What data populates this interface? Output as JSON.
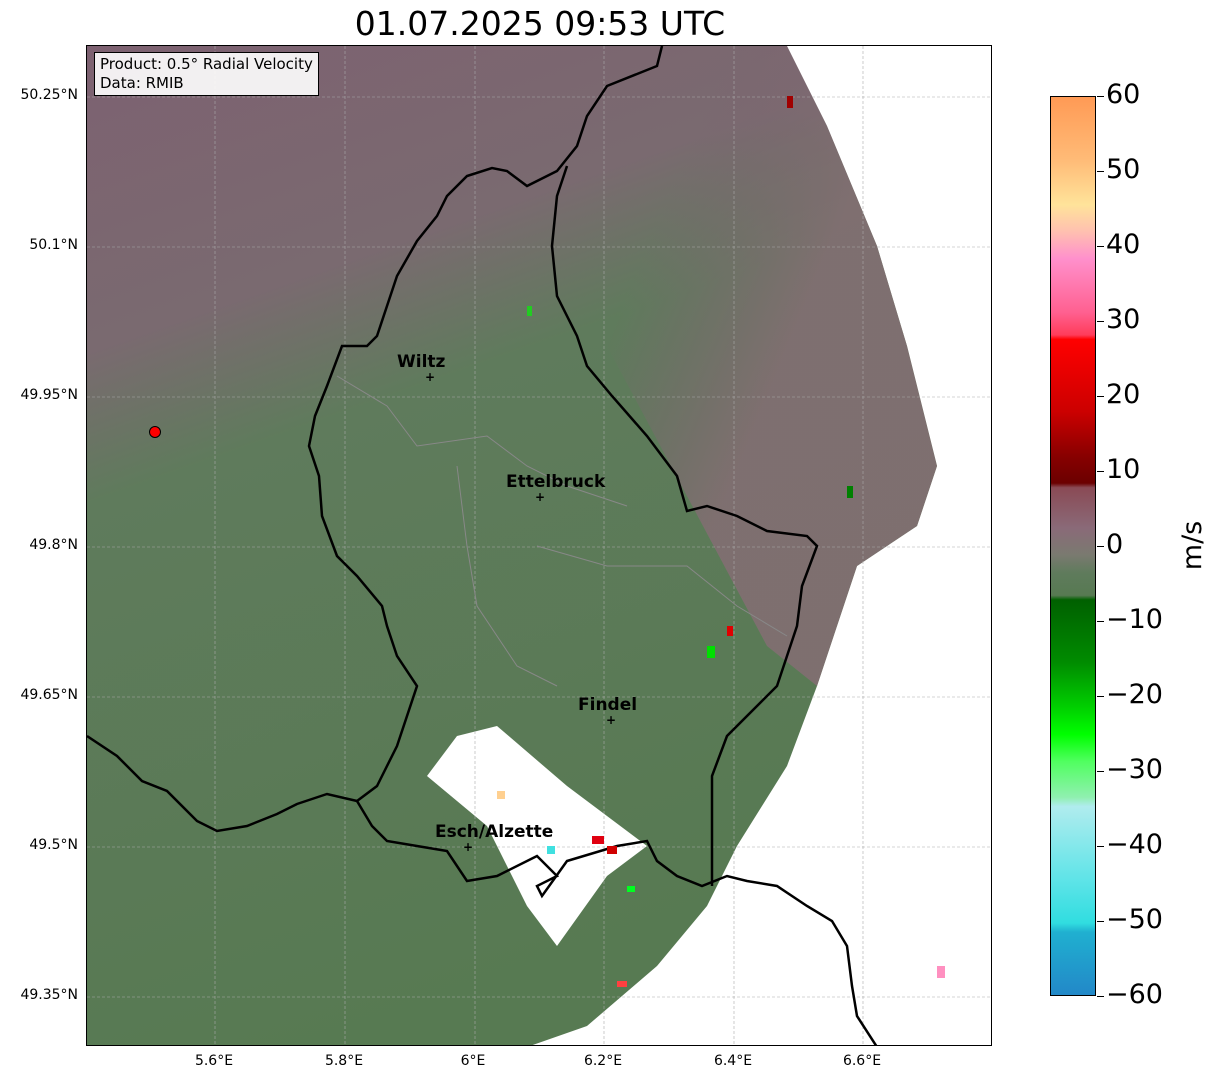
{
  "title": "01.07.2025 09:53 UTC",
  "info": {
    "product": "Product: 0.5° Radial Velocity",
    "data": "Data: RMIB"
  },
  "lat_ticks": [
    "50.25°N",
    "50.1°N",
    "49.95°N",
    "49.8°N",
    "49.65°N",
    "49.5°N",
    "49.35°N"
  ],
  "lon_ticks": [
    "5.6°E",
    "5.8°E",
    "6°E",
    "6.2°E",
    "6.4°E",
    "6.6°E"
  ],
  "cities": [
    {
      "name": "Wiltz"
    },
    {
      "name": "Ettelbruck"
    },
    {
      "name": "Findel"
    },
    {
      "name": "Esch/Alzette"
    }
  ],
  "colorbar": {
    "unit": "m/s",
    "min": -60,
    "max": 60,
    "ticks": [
      "60",
      "50",
      "40",
      "30",
      "20",
      "10",
      "0",
      "−10",
      "−20",
      "−30",
      "−40",
      "−50",
      "−60"
    ]
  },
  "colors": {
    "approaching": "#587a55",
    "receding": "#7d6470",
    "radar_site": "#ff0000"
  }
}
